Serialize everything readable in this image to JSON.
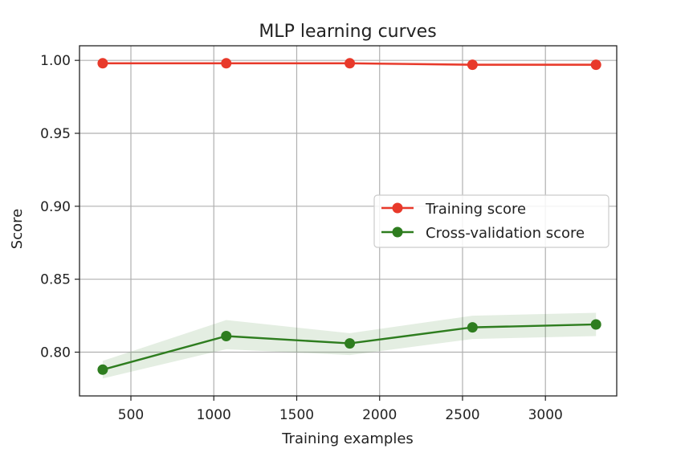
{
  "chart_data": {
    "type": "line",
    "title": "MLP learning curves",
    "xlabel": "Training examples",
    "ylabel": "Score",
    "xlim": [
      190,
      3430
    ],
    "ylim": [
      0.77,
      1.01
    ],
    "xticks": [
      500,
      1000,
      1500,
      2000,
      2500,
      3000
    ],
    "xtick_labels": [
      "500",
      "1000",
      "1500",
      "2000",
      "2500",
      "3000"
    ],
    "yticks": [
      0.8,
      0.85,
      0.9,
      0.95,
      1.0
    ],
    "ytick_labels": [
      "0.80",
      "0.85",
      "0.90",
      "0.95",
      "1.00"
    ],
    "grid": true,
    "legend_position": "center-right",
    "x": [
      330,
      1075,
      1820,
      2560,
      3305
    ],
    "series": [
      {
        "name": "Training score",
        "color": "#e8392a",
        "values": [
          0.998,
          0.998,
          0.998,
          0.997,
          0.997
        ],
        "band_lower": [
          0.997,
          0.997,
          0.997,
          0.996,
          0.996
        ],
        "band_upper": [
          0.999,
          0.999,
          0.999,
          0.998,
          0.998
        ]
      },
      {
        "name": "Cross-validation score",
        "color": "#2e7d1f",
        "band_color": "#2e7d1f",
        "values": [
          0.788,
          0.811,
          0.806,
          0.817,
          0.819
        ],
        "band_lower": [
          0.782,
          0.802,
          0.798,
          0.809,
          0.811
        ],
        "band_upper": [
          0.794,
          0.822,
          0.813,
          0.825,
          0.827
        ]
      }
    ]
  }
}
